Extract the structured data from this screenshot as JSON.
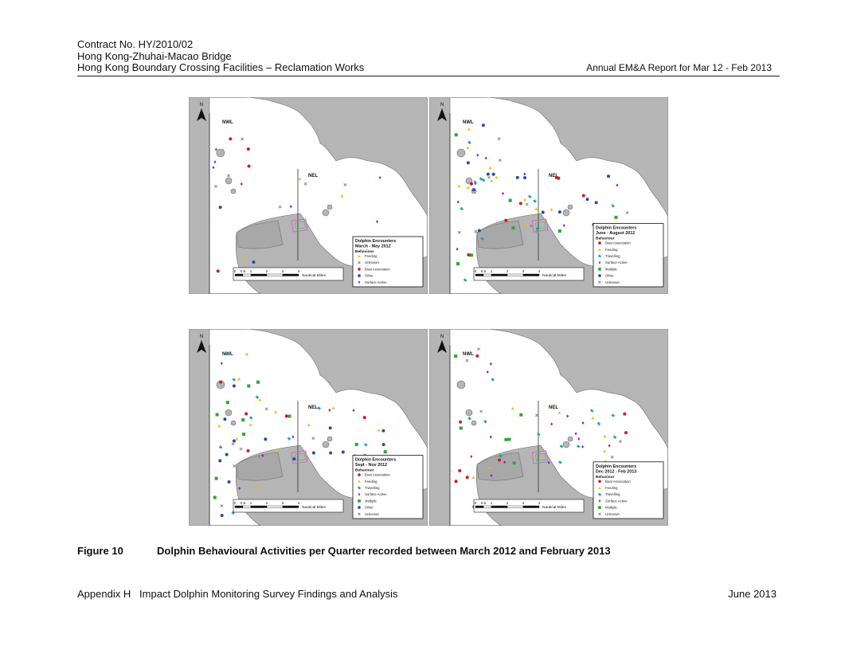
{
  "header": {
    "lines": [
      "Contract No. HY/2010/02",
      "Hong Kong-Zhuhai-Macao Bridge",
      "Hong Kong Boundary Crossing Facilities – Reclamation Works"
    ],
    "report": "Annual EM&A Report for Mar 12 - Feb 2013"
  },
  "map_labels": {
    "north": "N",
    "area_nw": "NWL",
    "area_ne": "NEL",
    "scale_unit": "Nautical Miles",
    "scale_ticks": [
      "0",
      "0.5",
      "1",
      "2",
      "3",
      "4"
    ]
  },
  "maps": [
    {
      "title_lines": [
        "Dolphin Encounters",
        "March - May 2012"
      ],
      "legend_heading": "Behaviour",
      "legend": [
        {
          "label": "Feeding",
          "shape": "triangle",
          "color": "#e5c20a"
        },
        {
          "label": "Unknown",
          "shape": "x",
          "color": "#8a8a8a"
        },
        {
          "label": "Boat Association",
          "shape": "circle",
          "color": "#d11a1a"
        },
        {
          "label": "Other",
          "shape": "circle",
          "color": "#1f4fa8"
        },
        {
          "label": "Surface Active",
          "shape": "diamond",
          "color": "#8b22c9"
        }
      ]
    },
    {
      "title_lines": [
        "Dolphin Encounters",
        "June - August 2012"
      ],
      "legend_heading": "Behaviour",
      "legend": [
        {
          "label": "Boat Association",
          "shape": "circle",
          "color": "#d11a1a"
        },
        {
          "label": "Feeding",
          "shape": "triangle",
          "color": "#e5c20a"
        },
        {
          "label": "Travelling",
          "shape": "star",
          "color": "#1a9fa8"
        },
        {
          "label": "Surface Active",
          "shape": "diamond",
          "color": "#8b22c9"
        },
        {
          "label": "Multiple",
          "shape": "square",
          "color": "#2ea52e"
        },
        {
          "label": "Other",
          "shape": "circle",
          "color": "#1f4fa8"
        },
        {
          "label": "Unknown",
          "shape": "x",
          "color": "#8a8a8a"
        }
      ]
    },
    {
      "title_lines": [
        "Dolphin Encounters",
        "Sept - Nov 2012"
      ],
      "legend_heading": "Behaviour",
      "legend": [
        {
          "label": "Boat Association",
          "shape": "circle",
          "color": "#d11a1a"
        },
        {
          "label": "Feeding",
          "shape": "triangle",
          "color": "#e5c20a"
        },
        {
          "label": "Travelling",
          "shape": "star",
          "color": "#1a9fa8"
        },
        {
          "label": "Surface Active",
          "shape": "diamond",
          "color": "#8b22c9"
        },
        {
          "label": "Multiple",
          "shape": "square",
          "color": "#2ea52e"
        },
        {
          "label": "Other",
          "shape": "circle",
          "color": "#1f4fa8"
        },
        {
          "label": "Unknown",
          "shape": "x",
          "color": "#8a8a8a"
        }
      ]
    },
    {
      "title_lines": [
        "Dolphin Encounters",
        "Dec 2012 - Feb 2013"
      ],
      "legend_heading": "Behaviour",
      "legend": [
        {
          "label": "Boat Association",
          "shape": "circle",
          "color": "#d11a1a"
        },
        {
          "label": "Feeding",
          "shape": "triangle",
          "color": "#e5c20a"
        },
        {
          "label": "Travelling",
          "shape": "star",
          "color": "#1a9fa8"
        },
        {
          "label": "Surface Active",
          "shape": "diamond",
          "color": "#8b22c9"
        },
        {
          "label": "Multiple",
          "shape": "square",
          "color": "#2ea52e"
        },
        {
          "label": "Unknown",
          "shape": "x",
          "color": "#8a8a8a"
        }
      ]
    }
  ],
  "caption": {
    "label": "Figure 10",
    "text": "Dolphin Behavioural Activities per Quarter recorded between March 2012 and February 2013"
  },
  "footer": {
    "left": "Appendix H   Impact Dolphin Monitoring Survey Findings and Analysis",
    "right": "June 2013"
  }
}
